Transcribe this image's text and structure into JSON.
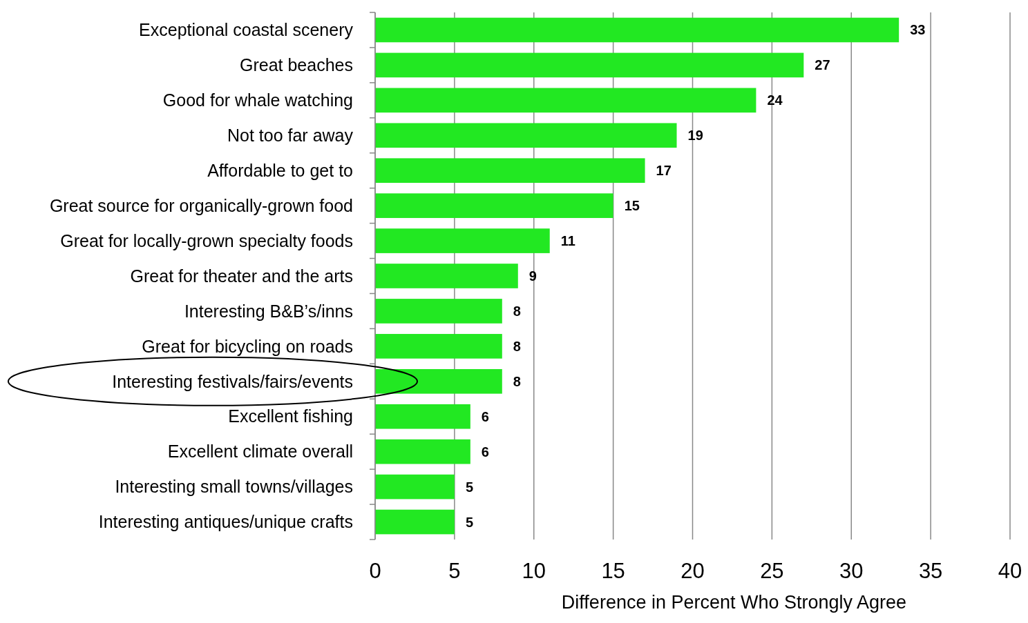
{
  "chart_data": {
    "type": "bar",
    "orientation": "horizontal",
    "xlabel": "Difference in Percent Who Strongly Agree",
    "categories": [
      "Exceptional coastal scenery",
      "Great beaches",
      "Good for whale watching",
      "Not too far away",
      "Affordable to get to",
      "Great source for organically-grown  food",
      "Great for locally-grown specialty foods",
      "Great for theater and the arts",
      "Interesting B&B’s/inns",
      "Great for bicycling on roads",
      "Interesting festivals/fairs/events",
      "Excellent fishing",
      "Excellent climate overall",
      "Interesting small towns/villages",
      "Interesting antiques/unique  crafts"
    ],
    "values": [
      33,
      27,
      24,
      19,
      17,
      15,
      11,
      9,
      8,
      8,
      8,
      6,
      6,
      5,
      5
    ],
    "color": "#22e822",
    "xlim": [
      0,
      40
    ],
    "xticks": [
      0,
      5,
      10,
      15,
      20,
      25,
      30,
      35,
      40
    ],
    "grid": "x",
    "data_labels": true
  }
}
